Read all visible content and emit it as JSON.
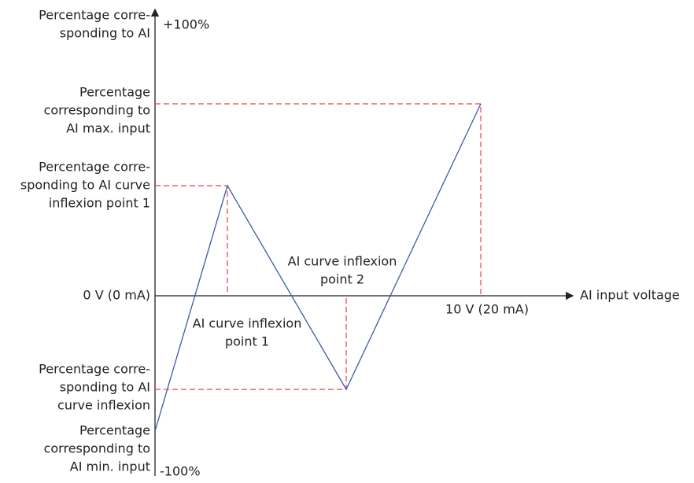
{
  "y_axis": {
    "title": [
      "Percentage corre-",
      "sponding to AI"
    ],
    "top": "+100%",
    "bottom": "-100%"
  },
  "x_axis": {
    "title": "AI input voltage",
    "origin": "0 V (0 mA)",
    "end": "10 V (20 mA)"
  },
  "y_labels": {
    "max_input": [
      "Percentage",
      "corresponding to",
      "AI max. input"
    ],
    "inflexion_1": [
      "Percentage corre-",
      "sponding to AI curve",
      "inflexion point 1"
    ],
    "inflexion_2": [
      "Percentage corre-",
      "sponding to AI",
      "curve inflexion"
    ],
    "min_input": [
      "Percentage",
      "corresponding to",
      "AI min. input"
    ]
  },
  "points": {
    "inflexion_1": [
      "AI curve inflexion",
      "point 1"
    ],
    "inflexion_2": [
      "AI curve inflexion",
      "point 2"
    ]
  }
}
